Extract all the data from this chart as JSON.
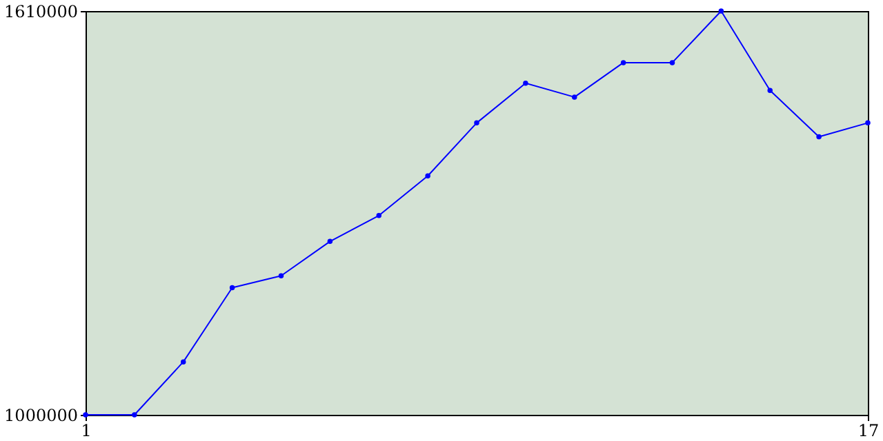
{
  "chart_data": {
    "type": "line",
    "x": [
      1,
      2,
      3,
      4,
      5,
      6,
      7,
      8,
      9,
      10,
      11,
      12,
      13,
      14,
      15,
      16,
      17
    ],
    "series": [
      {
        "color": "#0000ff",
        "values": [
          1000000,
          1000000,
          1080000,
          1192000,
          1210000,
          1262000,
          1301000,
          1361000,
          1441000,
          1501000,
          1480000,
          1532000,
          1532000,
          1610000,
          1490000,
          1420000,
          1441000
        ]
      }
    ],
    "xlim": [
      1,
      17
    ],
    "xticks": [
      1,
      17
    ],
    "ylim": [
      1000000,
      1610000
    ],
    "yticks": [
      1000000,
      1610000
    ],
    "grid": false,
    "marker": "circle",
    "line_style": "solid"
  }
}
